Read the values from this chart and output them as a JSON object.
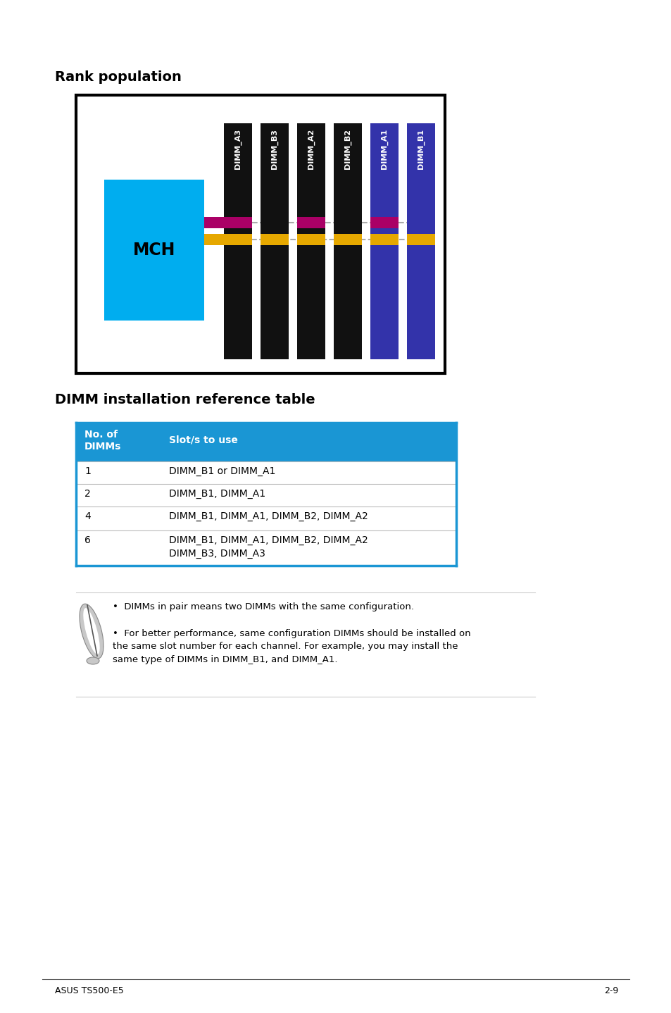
{
  "title1": "Rank population",
  "title2": "DIMM installation reference table",
  "page_label": "ASUS TS500-E5",
  "page_number": "2-9",
  "mch_color": "#00ADEF",
  "mch_label": "MCH",
  "dimm_slots": [
    {
      "name": "DIMM_A3",
      "color": "#111111"
    },
    {
      "name": "DIMM_B3",
      "color": "#111111"
    },
    {
      "name": "DIMM_A2",
      "color": "#111111"
    },
    {
      "name": "DIMM_B2",
      "color": "#111111"
    },
    {
      "name": "DIMM_A1",
      "color": "#3333aa"
    },
    {
      "name": "DIMM_B1",
      "color": "#3333aa"
    }
  ],
  "table_header_bg": "#1a96d4",
  "table_header_text": "#ffffff",
  "table_col1_header": "No. of\nDIMMs",
  "table_col2_header": "Slot/s to use",
  "table_rows": [
    [
      "1",
      "DIMM_B1 or DIMM_A1"
    ],
    [
      "2",
      "DIMM_B1, DIMM_A1"
    ],
    [
      "4",
      "DIMM_B1, DIMM_A1, DIMM_B2, DIMM_A2"
    ],
    [
      "6",
      "DIMM_B1, DIMM_A1, DIMM_B2, DIMM_A2\nDIMM_B3, DIMM_A3"
    ]
  ],
  "note1": "DIMMs in pair means two DIMMs with the same configuration.",
  "note2": "For better performance, same configuration DIMMs should be installed on\nthe same slot number for each channel. For example, you may install the\nsame type of DIMMs in DIMM_B1, and DIMM_A1.",
  "magenta_color": "#aa0066",
  "yellow_color": "#e6a800",
  "gray_color": "#888888",
  "bg_color": "#ffffff"
}
